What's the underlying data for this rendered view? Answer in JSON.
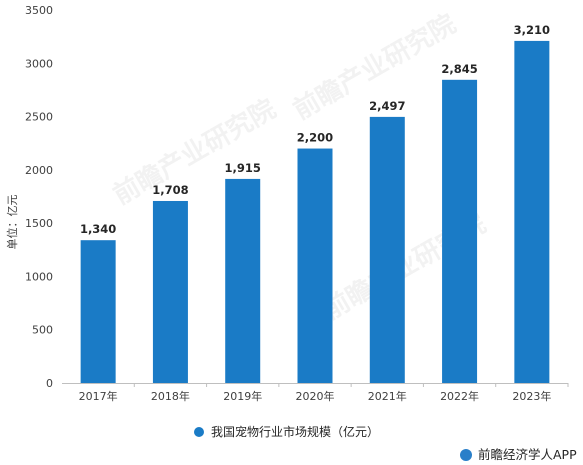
{
  "chart_data": {
    "type": "bar",
    "categories": [
      "2017年",
      "2018年",
      "2019年",
      "2020年",
      "2021年",
      "2022年",
      "2023年"
    ],
    "series": [
      {
        "name": "我国宠物行业市场规模（亿元）",
        "values": [
          1340,
          1708,
          1915,
          2200,
          2497,
          2845,
          3210
        ],
        "labels": [
          "1,340",
          "1,708",
          "1,915",
          "2,200",
          "2,497",
          "2,845",
          "3,210"
        ]
      }
    ],
    "title": "",
    "xlabel": "",
    "ylabel": "单位：亿元",
    "ylim": [
      0,
      3500
    ],
    "yticks": [
      0,
      500,
      1000,
      1500,
      2000,
      2500,
      3000,
      3500
    ],
    "grid": false,
    "legend_position": "bottom",
    "bar_color": "#1a7bc6"
  },
  "credit": "前瞻经济学人APP"
}
